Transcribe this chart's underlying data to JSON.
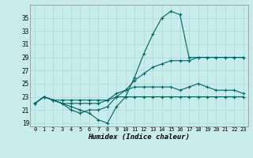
{
  "xlabel": "Humidex (Indice chaleur)",
  "xlim": [
    -0.5,
    23.5
  ],
  "ylim": [
    18.5,
    37
  ],
  "yticks": [
    19,
    21,
    23,
    25,
    27,
    29,
    31,
    33,
    35
  ],
  "xticks": [
    0,
    1,
    2,
    3,
    4,
    5,
    6,
    7,
    8,
    9,
    10,
    11,
    12,
    13,
    14,
    15,
    16,
    17,
    18,
    19,
    20,
    21,
    22,
    23
  ],
  "bg_color": "#c8ebeb",
  "line_color": "#006666",
  "grid_color": "#a8d8d8",
  "lines": [
    [
      22,
      23,
      22.5,
      22,
      21.5,
      21,
      20.5,
      19.5,
      19,
      21.5,
      23,
      26,
      29.5,
      32.5,
      35,
      36,
      35.5,
      29,
      29,
      29,
      29,
      29,
      29,
      29
    ],
    [
      22,
      23,
      22.5,
      22,
      21,
      20.5,
      21,
      21,
      21.5,
      23,
      24,
      25.5,
      26.5,
      27.5,
      28,
      28.5,
      28.5,
      28.5,
      29,
      29,
      29,
      29,
      29,
      29
    ],
    [
      22,
      23,
      22.5,
      22,
      22,
      22,
      22,
      22,
      22.5,
      23.5,
      24,
      24.5,
      24.5,
      24.5,
      24.5,
      24.5,
      24,
      24.5,
      25,
      24.5,
      24,
      24,
      24,
      23.5
    ],
    [
      22,
      23,
      22.5,
      22.5,
      22.5,
      22.5,
      22.5,
      22.5,
      22.5,
      23,
      23,
      23,
      23,
      23,
      23,
      23,
      23,
      23,
      23,
      23,
      23,
      23,
      23,
      23
    ]
  ]
}
